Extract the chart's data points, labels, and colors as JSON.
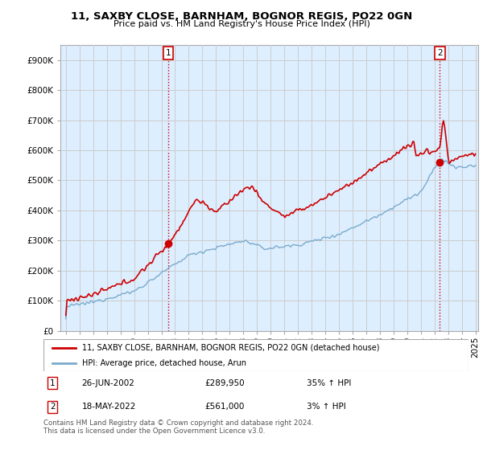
{
  "title": "11, SAXBY CLOSE, BARNHAM, BOGNOR REGIS, PO22 0GN",
  "subtitle": "Price paid vs. HM Land Registry's House Price Index (HPI)",
  "legend_label_red": "11, SAXBY CLOSE, BARNHAM, BOGNOR REGIS, PO22 0GN (detached house)",
  "legend_label_blue": "HPI: Average price, detached house, Arun",
  "annotation1_label": "1",
  "annotation1_date": "26-JUN-2002",
  "annotation1_price": "£289,950",
  "annotation1_hpi": "35% ↑ HPI",
  "annotation2_label": "2",
  "annotation2_date": "18-MAY-2022",
  "annotation2_price": "£561,000",
  "annotation2_hpi": "3% ↑ HPI",
  "footer": "Contains HM Land Registry data © Crown copyright and database right 2024.\nThis data is licensed under the Open Government Licence v3.0.",
  "ylim": [
    0,
    950000
  ],
  "yticks": [
    0,
    100000,
    200000,
    300000,
    400000,
    500000,
    600000,
    700000,
    800000,
    900000
  ],
  "red_color": "#cc0000",
  "blue_color": "#7aabcc",
  "blue_fill": "#ddeeff",
  "background_color": "#ffffff",
  "grid_color": "#cccccc",
  "purchase1_x": 2002.5,
  "purchase1_y": 289950,
  "purchase2_x": 2022.38,
  "purchase2_y": 561000,
  "xmin": 1995.0,
  "xmax": 2025.0
}
